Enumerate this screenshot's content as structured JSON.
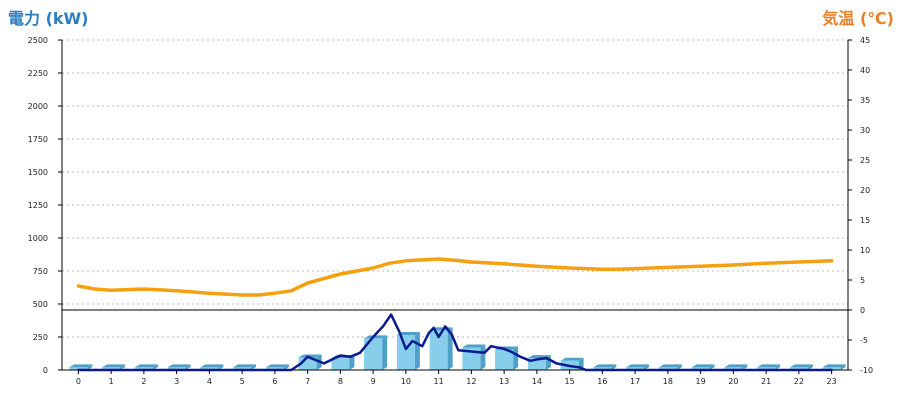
{
  "colors": {
    "left_title": "#2a7fc1",
    "right_title": "#e8822a",
    "temperature_line": "#f5a010",
    "power_line": "#0b1a8f",
    "bar_face": "#87ceeb",
    "bar_side": "#4f9fc8"
  },
  "chart_data": {
    "type": "bar+line",
    "left_axis": {
      "title": "電力 (kW)",
      "ticks": [
        0,
        250,
        500,
        750,
        1000,
        1250,
        1500,
        1750,
        2000,
        2250,
        2500
      ],
      "range": [
        0,
        2500
      ]
    },
    "right_axis": {
      "title": "気温 (℃)",
      "ticks": [
        -10,
        -5,
        0,
        5,
        10,
        15,
        20,
        25,
        30,
        35,
        40,
        45
      ],
      "range": [
        -10,
        45
      ]
    },
    "categories": [
      "0",
      "1",
      "2",
      "3",
      "4",
      "5",
      "6",
      "7",
      "8",
      "9",
      "10",
      "11",
      "12",
      "13",
      "14",
      "15",
      "16",
      "17",
      "18",
      "19",
      "20",
      "21",
      "22",
      "23"
    ],
    "grid": "horizontal dashed",
    "bars": {
      "axis": "left",
      "values": [
        20,
        20,
        20,
        20,
        20,
        20,
        20,
        95,
        90,
        240,
        265,
        300,
        170,
        155,
        90,
        70,
        20,
        20,
        20,
        20,
        20,
        20,
        20,
        20
      ]
    },
    "series": [
      {
        "axis": "right",
        "x": [
          0,
          0.5,
          1,
          2,
          3,
          4,
          5,
          5.5,
          6,
          6.5,
          7,
          8,
          9,
          9.5,
          10,
          11,
          11.5,
          12,
          13,
          14,
          15,
          16,
          16.5,
          17,
          18,
          19,
          20,
          21,
          22,
          23
        ],
        "values": [
          4.0,
          3.5,
          3.3,
          3.5,
          3.2,
          2.8,
          2.5,
          2.5,
          2.8,
          3.2,
          4.5,
          6.0,
          7.0,
          7.8,
          8.2,
          8.5,
          8.3,
          8.0,
          7.7,
          7.3,
          7.0,
          6.8,
          6.8,
          6.9,
          7.1,
          7.3,
          7.5,
          7.8,
          8.0,
          8.2
        ]
      },
      {
        "axis": "left",
        "x": [
          0,
          6.5,
          6.8,
          7.0,
          7.2,
          7.5,
          8.0,
          8.3,
          8.6,
          9.0,
          9.3,
          9.55,
          9.8,
          10.0,
          10.2,
          10.5,
          10.7,
          10.85,
          11.0,
          11.2,
          11.4,
          11.6,
          12.0,
          12.4,
          12.6,
          13.0,
          13.2,
          13.5,
          13.8,
          14.0,
          14.3,
          14.6,
          15.0,
          15.3,
          15.5,
          16.0,
          23.0
        ],
        "values": [
          0,
          0,
          50,
          100,
          80,
          50,
          110,
          100,
          130,
          250,
          330,
          420,
          290,
          160,
          220,
          180,
          280,
          320,
          250,
          330,
          270,
          150,
          140,
          130,
          180,
          160,
          140,
          100,
          70,
          80,
          90,
          50,
          30,
          20,
          0,
          0,
          0
        ]
      }
    ]
  }
}
